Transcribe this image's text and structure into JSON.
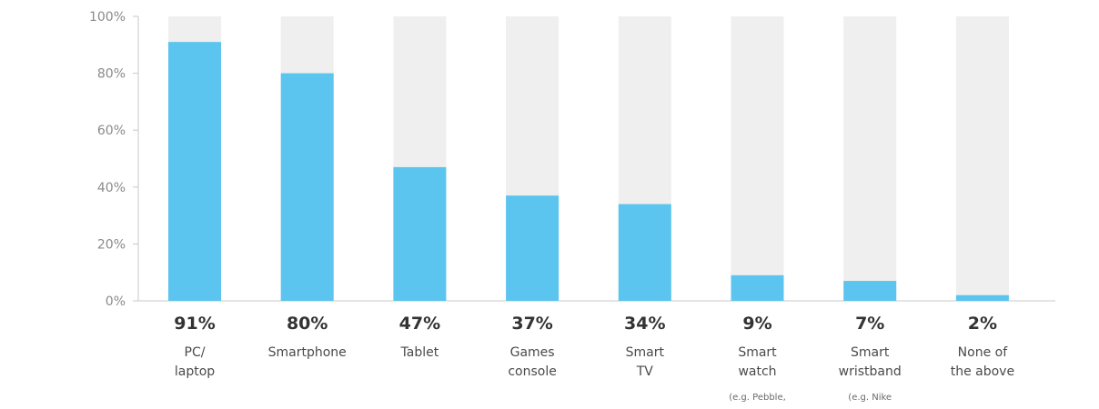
{
  "chart_data": {
    "type": "bar",
    "categories": [
      {
        "lines": [
          "PC/",
          "laptop"
        ],
        "sublines": []
      },
      {
        "lines": [
          "Smartphone"
        ],
        "sublines": []
      },
      {
        "lines": [
          "Tablet"
        ],
        "sublines": []
      },
      {
        "lines": [
          "Games",
          "console"
        ],
        "sublines": []
      },
      {
        "lines": [
          "Smart",
          "TV"
        ],
        "sublines": []
      },
      {
        "lines": [
          "Smart",
          "watch"
        ],
        "sublines": [
          "(e.g. Pebble,"
        ]
      },
      {
        "lines": [
          "Smart",
          "wristband"
        ],
        "sublines": [
          "(e.g. Nike"
        ]
      },
      {
        "lines": [
          "None of",
          "the above"
        ],
        "sublines": []
      }
    ],
    "values": [
      91,
      80,
      47,
      37,
      34,
      9,
      7,
      2
    ],
    "value_labels": [
      "91%",
      "80%",
      "47%",
      "37%",
      "34%",
      "9%",
      "7%",
      "2%"
    ],
    "ylim": [
      0,
      100
    ],
    "yticks": [
      0,
      20,
      40,
      60,
      80,
      100
    ],
    "ytick_labels": [
      "0%",
      "20%",
      "40%",
      "60%",
      "80%",
      "100%"
    ],
    "grid": false,
    "bar_color": "#5bc4ef",
    "background_bar_color": "#efefef",
    "axis_color": "#c8c8c8"
  }
}
